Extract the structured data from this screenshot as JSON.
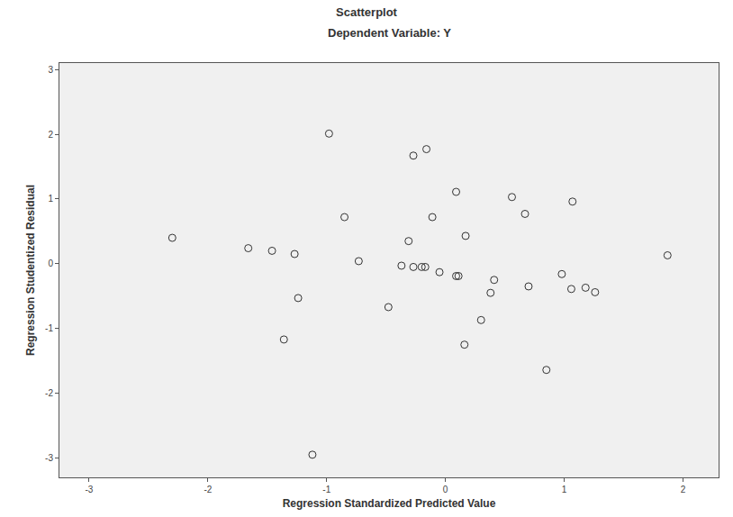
{
  "chart_data": {
    "type": "scatter",
    "title": "Scatterplot",
    "subtitle": "Dependent Variable: Y",
    "x_label": "Regression Standardized Predicted Value",
    "y_label": "Regression Studentized Residual",
    "x": [
      -2.3,
      -1.66,
      -1.46,
      -1.27,
      -1.24,
      -1.36,
      -1.12,
      -0.98,
      -0.85,
      -0.73,
      -0.48,
      -0.37,
      -0.27,
      -0.2,
      -0.17,
      -0.31,
      -0.27,
      -0.16,
      -0.11,
      -0.05,
      0.09,
      0.09,
      0.11,
      0.17,
      0.16,
      0.3,
      0.38,
      0.41,
      0.56,
      0.67,
      0.7,
      0.85,
      1.07,
      0.98,
      1.06,
      1.18,
      1.26,
      1.87
    ],
    "values": [
      0.4,
      0.24,
      0.2,
      0.15,
      -0.53,
      -1.17,
      -2.95,
      2.01,
      0.72,
      0.04,
      -0.67,
      -0.03,
      -0.05,
      -0.05,
      -0.05,
      0.35,
      1.67,
      1.77,
      0.72,
      -0.13,
      1.11,
      -0.19,
      -0.19,
      0.43,
      -1.25,
      -0.87,
      -0.45,
      -0.25,
      1.03,
      0.77,
      -0.35,
      -1.64,
      0.96,
      -0.16,
      -0.39,
      -0.37,
      -0.44,
      0.13
    ],
    "color": "#333333",
    "marker": "open-circle",
    "xlim": [
      -3.25,
      2.3
    ],
    "ylim": [
      -3.3,
      3.1
    ],
    "xticks": [
      -3,
      -2,
      -1,
      0,
      1,
      2
    ],
    "yticks": [
      -3,
      -2,
      -1,
      0,
      1,
      2,
      3
    ],
    "grid": false
  }
}
